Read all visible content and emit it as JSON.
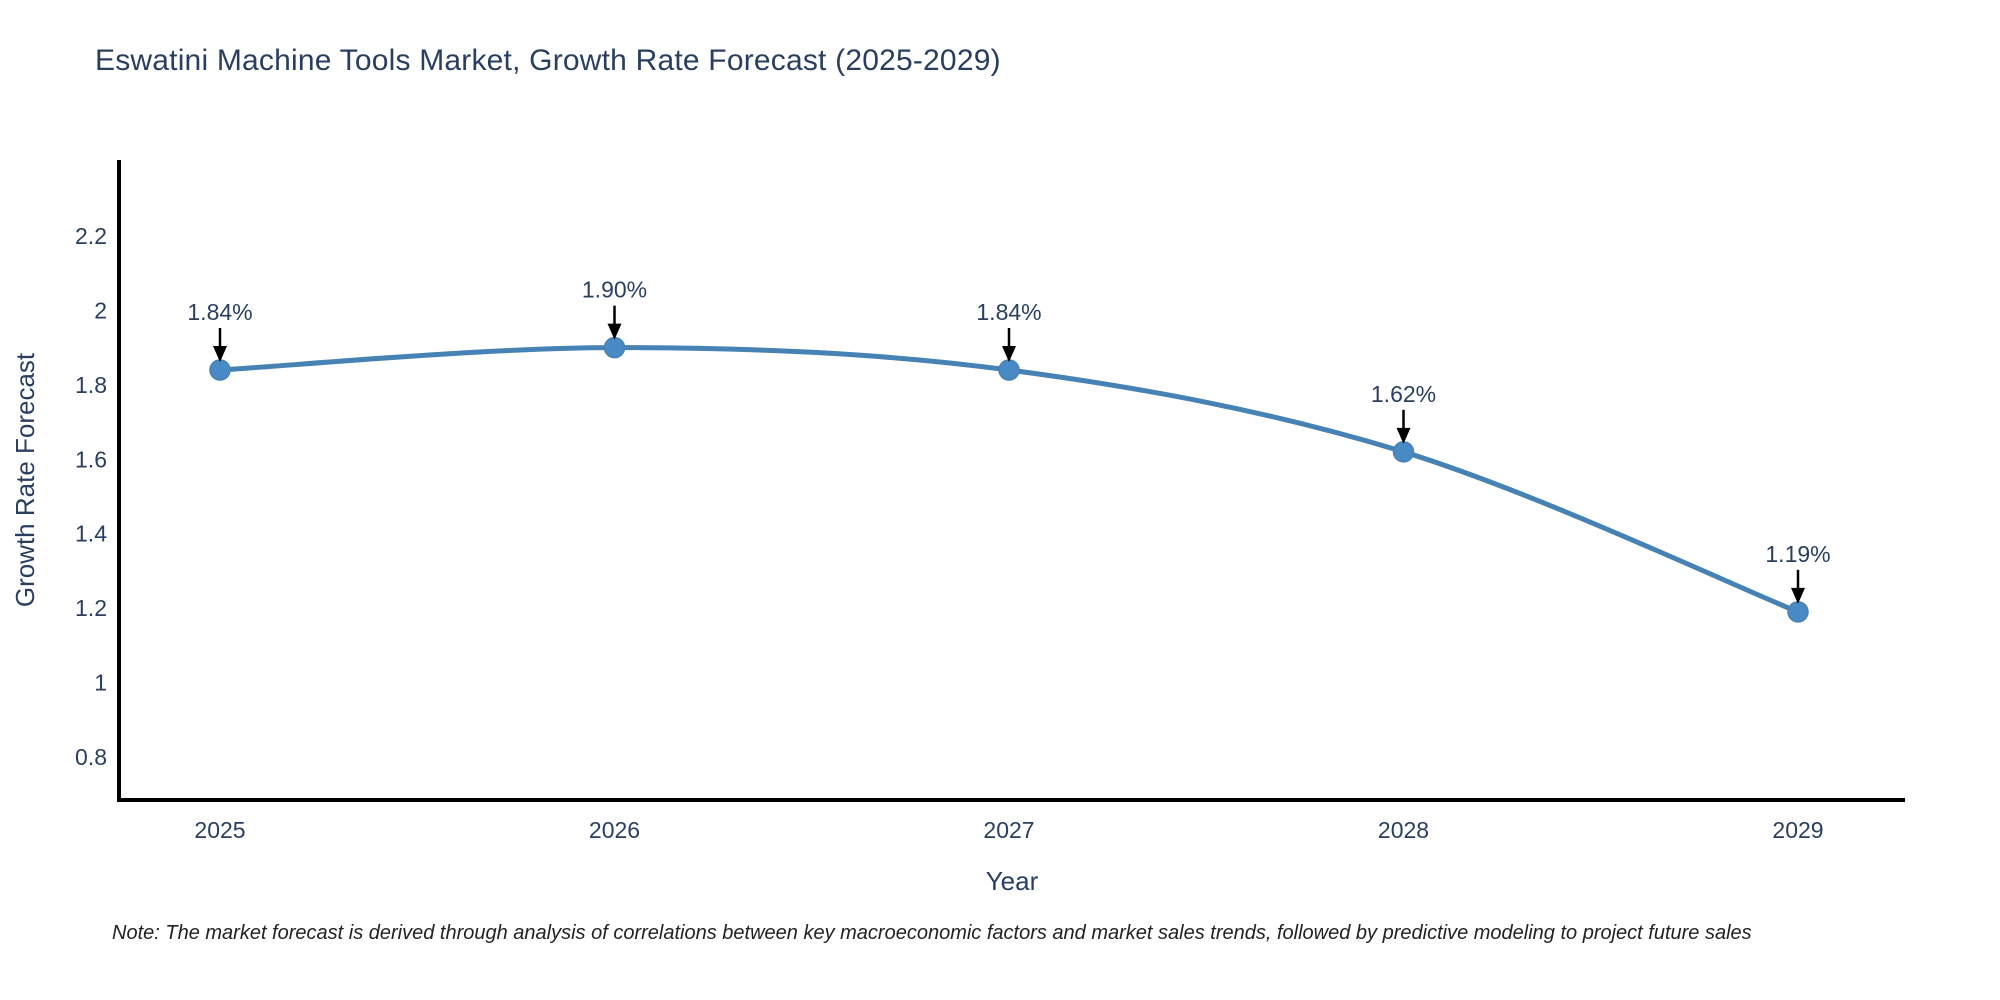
{
  "title": "Eswatini Machine Tools Market, Growth Rate Forecast (2025-2029)",
  "note": "Note: The market forecast is derived through analysis of correlations between key macroeconomic factors and market sales trends, followed by predictive modeling to project future sales",
  "chart_data": {
    "type": "line",
    "title": "Eswatini Machine Tools Market, Growth Rate Forecast (2025-2029)",
    "xlabel": "Year",
    "ylabel": "Growth Rate Forecast",
    "x": [
      2025,
      2026,
      2027,
      2028,
      2029
    ],
    "x_tick_labels": [
      "2025",
      "2026",
      "2027",
      "2028",
      "2029"
    ],
    "values": [
      1.84,
      1.9,
      1.84,
      1.62,
      1.19
    ],
    "point_labels": [
      "1.84%",
      "1.90%",
      "1.84%",
      "1.62%",
      "1.19%"
    ],
    "y_ticks": [
      0.8,
      1,
      1.2,
      1.4,
      1.6,
      1.8,
      2,
      2.2
    ],
    "y_tick_labels": [
      "0.8",
      "1",
      "1.2",
      "1.4",
      "1.6",
      "1.8",
      "2",
      "2.2"
    ],
    "ylim": [
      0.68,
      2.41
    ],
    "grid": false,
    "legend": "none",
    "line_color": "#4682b4",
    "marker_color": "#4a8ac4",
    "axis_color": "#000000",
    "text_color": "#2a3f5f",
    "annotation_arrow_color": "#000000"
  }
}
